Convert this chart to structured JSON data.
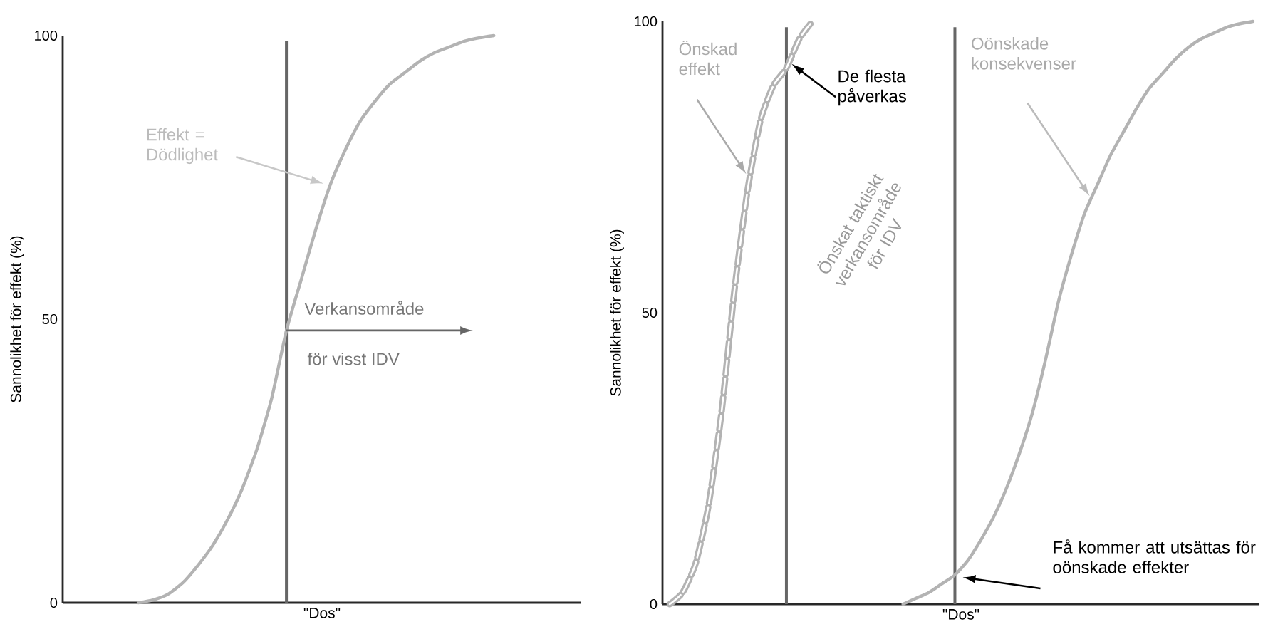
{
  "chart_data": [
    {
      "type": "line",
      "categories": [
        null,
        null,
        null,
        null,
        null,
        null,
        null,
        null,
        null,
        null,
        null,
        null,
        null,
        null,
        null,
        null,
        null,
        null,
        null,
        null,
        null,
        null,
        null,
        null,
        null
      ],
      "series": [
        {
          "color": "#b3b3b3",
          "values": [
            0,
            0.5,
            1.5,
            3.5,
            6.5,
            10,
            14.5,
            20,
            27,
            36,
            48,
            57,
            66,
            74,
            80,
            85,
            88.5,
            91.5,
            93.5,
            95.5,
            97,
            98,
            99,
            99.6,
            100
          ]
        }
      ],
      "ylim": [
        0,
        100
      ],
      "yticks": [
        0,
        50,
        100
      ],
      "tick_labels": "y",
      "ylabel": "Sannolikhet för effekt (%)",
      "xlabel": "\"Dos\"",
      "annotations": [
        "Effekt = Dödlighet",
        "Verkansområde",
        "för visst IDV"
      ]
    },
    {
      "type": "line",
      "categories": [
        null,
        null,
        null,
        null,
        null,
        null,
        null,
        null,
        null,
        null,
        null,
        null,
        null,
        null,
        null,
        null,
        null,
        null,
        null,
        null,
        null,
        null,
        null,
        null,
        null,
        null,
        null,
        null,
        null,
        null,
        null,
        null,
        null,
        null,
        null,
        null,
        null,
        null,
        null,
        null,
        null,
        null,
        null,
        null,
        null,
        null
      ],
      "series": [
        {
          "color": "#b3b3b3",
          "line_style": "dashed",
          "values": [
            0,
            2,
            7,
            17,
            33,
            54,
            71,
            83,
            89,
            92,
            97,
            100,
            null,
            null,
            null,
            null,
            null,
            null,
            null,
            null,
            null,
            null,
            null,
            null,
            null,
            null,
            null,
            null,
            null,
            null,
            null,
            null,
            null,
            null,
            null,
            null,
            null,
            null,
            null,
            null,
            null,
            null,
            null,
            null,
            null,
            null
          ]
        },
        {
          "color": "#b3b3b3",
          "values": [
            null,
            null,
            null,
            null,
            null,
            null,
            null,
            null,
            null,
            null,
            null,
            null,
            null,
            null,
            null,
            null,
            null,
            null,
            0,
            1,
            2,
            3.5,
            5,
            7.5,
            11,
            15,
            20,
            26,
            33,
            42,
            52,
            60,
            67,
            72,
            77,
            81,
            85,
            88.5,
            91,
            93.5,
            95.5,
            97,
            98,
            99,
            99.6,
            100
          ]
        }
      ],
      "ylim": [
        0,
        100
      ],
      "yticks": [
        0,
        50,
        100
      ],
      "tick_labels": "y",
      "ylabel": "Sannolikhet för effekt (%)",
      "xlabel": "\"Dos\"",
      "annotations": [
        "Önskad effekt",
        "De flesta påverkas",
        "Önskat taktiskt verkansområde för IDV",
        "Oönskade konsekvenser",
        "Få kommer att utsättas för oönskade effekter"
      ]
    }
  ]
}
